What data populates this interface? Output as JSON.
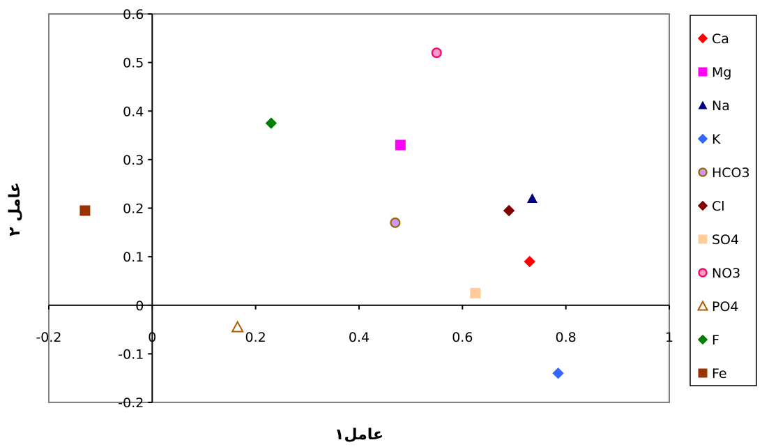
{
  "chart_data": {
    "type": "scatter",
    "title": "",
    "xlabel": "عامل۱",
    "ylabel": "عامل ۲",
    "xlim": [
      -0.2,
      1
    ],
    "ylim": [
      -0.2,
      0.6
    ],
    "x_ticks": [
      -0.2,
      0,
      0.2,
      0.4,
      0.6,
      0.8,
      1
    ],
    "x_tick_labels": [
      "-0.2",
      "0",
      "0.2",
      "0.4",
      "0.6",
      "0.8",
      "1"
    ],
    "y_ticks": [
      -0.2,
      -0.1,
      0,
      0.1,
      0.2,
      0.3,
      0.4,
      0.5,
      0.6
    ],
    "y_tick_labels": [
      "-0.2",
      "-0.1",
      "0",
      "0.1",
      "0.2",
      "0.3",
      "0.4",
      "0.5",
      "0.6"
    ],
    "grid": false,
    "legend_position": "right",
    "series": [
      {
        "name": "Ca",
        "marker": "diamond",
        "color": "#ff0000",
        "x": 0.73,
        "y": 0.09
      },
      {
        "name": "Mg",
        "marker": "square",
        "color": "#ff00ff",
        "x": 0.48,
        "y": 0.33
      },
      {
        "name": "Na",
        "marker": "triangle",
        "color": "#000080",
        "x": 0.735,
        "y": 0.22
      },
      {
        "name": "K",
        "marker": "diamond",
        "color": "#3366ff",
        "x": 0.785,
        "y": -0.14
      },
      {
        "name": "HCO3",
        "marker": "circle",
        "color": "#cc99ff",
        "edge": "#996600",
        "x": 0.47,
        "y": 0.17
      },
      {
        "name": "Cl",
        "marker": "diamond",
        "color": "#800000",
        "x": 0.69,
        "y": 0.195
      },
      {
        "name": "SO4",
        "marker": "square",
        "color": "#ffcc99",
        "x": 0.625,
        "y": 0.025
      },
      {
        "name": "NO3",
        "marker": "circle",
        "color": "#ff99cc",
        "edge": "#ff0066",
        "x": 0.55,
        "y": 0.52
      },
      {
        "name": "PO4",
        "marker": "triangle-open",
        "color": "#b35900",
        "x": 0.165,
        "y": -0.045
      },
      {
        "name": "F",
        "marker": "diamond",
        "color": "#008000",
        "x": 0.23,
        "y": 0.375
      },
      {
        "name": "Fe",
        "marker": "square",
        "color": "#993300",
        "x": -0.13,
        "y": 0.195
      }
    ]
  }
}
